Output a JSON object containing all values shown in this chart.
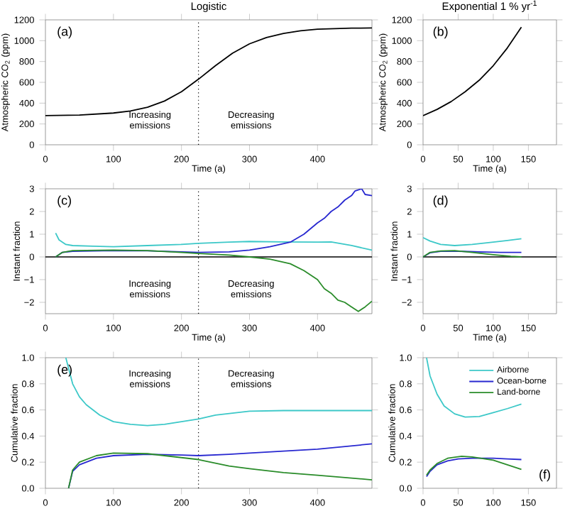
{
  "chart_data": [
    {
      "type": "line",
      "title": "Logistic",
      "xlabel": "Time (a)",
      "ylabel": "Atmospheric CO$_{2}$ (ppm)",
      "annotations": [
        "(a)",
        "Increasing emissions",
        "Decreasing emissions"
      ],
      "xlim": [
        0,
        480
      ],
      "xticks": [
        0,
        100,
        200,
        300,
        400
      ],
      "ylim": [
        0,
        1200
      ],
      "yticks": [
        0,
        200,
        400,
        600,
        800,
        1000,
        1200
      ],
      "ref_lines": [
        {
          "axis": "x",
          "value": 225,
          "color": "#000000",
          "line_style": "dotted"
        }
      ],
      "series": [
        {
          "color": "#000000",
          "x": [
            0,
            50,
            100,
            125,
            150,
            175,
            200,
            225,
            250,
            275,
            300,
            325,
            350,
            375,
            400,
            450,
            480
          ],
          "values": [
            280,
            285,
            305,
            325,
            360,
            420,
            510,
            630,
            760,
            880,
            970,
            1030,
            1070,
            1095,
            1110,
            1120,
            1122
          ]
        }
      ]
    },
    {
      "type": "line",
      "title": "Exponential 1 % yr$^{-1}$",
      "xlabel": "Time (a)",
      "ylabel": "Atmospheric CO$_{2}$ (ppm)",
      "annotations": [
        "(b)"
      ],
      "xlim": [
        0,
        190
      ],
      "xticks": [
        0,
        50,
        100,
        150
      ],
      "ylim": [
        0,
        1200
      ],
      "yticks": [
        0,
        200,
        400,
        600,
        800,
        1000,
        1200
      ],
      "series": [
        {
          "color": "#000000",
          "x": [
            0,
            20,
            40,
            60,
            80,
            100,
            120,
            140
          ],
          "values": [
            280,
            340,
            415,
            510,
            620,
            760,
            930,
            1130
          ]
        }
      ]
    },
    {
      "type": "line",
      "xlabel": "Time (a)",
      "ylabel": "Instant fraction",
      "annotations": [
        "(c)",
        "Increasing emissions",
        "Decreasing emissions"
      ],
      "xlim": [
        0,
        480
      ],
      "xticks": [
        0,
        100,
        200,
        300,
        400
      ],
      "ylim": [
        -2.5,
        3
      ],
      "yticks": [
        {
          "value": -2,
          "label": "−2"
        },
        {
          "value": -1,
          "label": "−1"
        },
        0,
        1,
        2,
        3
      ],
      "ref_lines": [
        {
          "axis": "x",
          "value": 225,
          "color": "#000000",
          "line_style": "dotted"
        },
        {
          "axis": "y",
          "value": 0,
          "color": "#000000",
          "line_style": "solid"
        }
      ],
      "series": [
        {
          "color": "#3cc8c8",
          "x": [
            15,
            20,
            30,
            40,
            70,
            100,
            150,
            200,
            225,
            270,
            300,
            350,
            400,
            420,
            450,
            480
          ],
          "values": [
            1.05,
            0.75,
            0.55,
            0.5,
            0.47,
            0.45,
            0.5,
            0.55,
            0.6,
            0.65,
            0.68,
            0.66,
            0.65,
            0.66,
            0.5,
            0.3
          ]
        },
        {
          "color": "#2828d0",
          "x": [
            15,
            25,
            40,
            100,
            150,
            200,
            225,
            270,
            300,
            330,
            360,
            380,
            400,
            410,
            420,
            430,
            440,
            450,
            455,
            465,
            470,
            480
          ],
          "values": [
            0,
            0.2,
            0.25,
            0.28,
            0.27,
            0.22,
            0.2,
            0.22,
            0.3,
            0.45,
            0.65,
            1.0,
            1.5,
            1.7,
            2.0,
            2.2,
            2.5,
            2.7,
            2.9,
            3.0,
            2.75,
            2.7
          ]
        },
        {
          "color": "#2a8c2a",
          "x": [
            15,
            25,
            40,
            100,
            150,
            200,
            225,
            270,
            300,
            330,
            360,
            380,
            400,
            410,
            420,
            430,
            440,
            450,
            460,
            470,
            480
          ],
          "values": [
            0,
            0.2,
            0.28,
            0.3,
            0.28,
            0.2,
            0.15,
            0.08,
            0.0,
            -0.1,
            -0.3,
            -0.6,
            -1.0,
            -1.4,
            -1.6,
            -1.9,
            -2.0,
            -2.2,
            -2.4,
            -2.2,
            -1.95
          ]
        }
      ]
    },
    {
      "type": "line",
      "xlabel": "Time (a)",
      "ylabel": "Instant fraction",
      "annotations": [
        "(d)"
      ],
      "xlim": [
        0,
        190
      ],
      "xticks": [
        0,
        50,
        100,
        150
      ],
      "ylim": [
        -2.5,
        3
      ],
      "yticks": [
        {
          "value": -2,
          "label": "−2"
        },
        {
          "value": -1,
          "label": "−1"
        },
        0,
        1,
        2,
        3
      ],
      "ref_lines": [
        {
          "axis": "y",
          "value": 0,
          "color": "#000000",
          "line_style": "solid"
        }
      ],
      "series": [
        {
          "color": "#3cc8c8",
          "x": [
            0,
            10,
            25,
            45,
            70,
            100,
            120,
            140
          ],
          "values": [
            0.85,
            0.7,
            0.55,
            0.5,
            0.55,
            0.65,
            0.72,
            0.8
          ]
        },
        {
          "color": "#2828d0",
          "x": [
            0,
            10,
            25,
            50,
            80,
            110,
            140
          ],
          "values": [
            0,
            0.18,
            0.25,
            0.25,
            0.22,
            0.2,
            0.2
          ]
        },
        {
          "color": "#2a8c2a",
          "x": [
            0,
            10,
            25,
            45,
            70,
            100,
            125,
            140
          ],
          "values": [
            0,
            0.2,
            0.26,
            0.28,
            0.2,
            0.1,
            0.03,
            0
          ]
        }
      ]
    },
    {
      "type": "line",
      "ylabel": "Cumulative fraction",
      "annotations": [
        "(e)",
        "Increasing emissions",
        "Decreasing emissions"
      ],
      "xlim": [
        0,
        480
      ],
      "xticks": [
        0,
        100,
        200,
        300,
        400
      ],
      "ylim": [
        0,
        1
      ],
      "yticks": [
        {
          "value": 0,
          "label": "0.0"
        },
        0.2,
        0.4,
        0.6,
        0.8,
        {
          "value": 1,
          "label": "1.0"
        }
      ],
      "ref_lines": [
        {
          "axis": "x",
          "value": 225,
          "color": "#000000",
          "line_style": "dotted"
        }
      ],
      "series": [
        {
          "color": "#3cc8c8",
          "x": [
            30,
            40,
            50,
            60,
            80,
            100,
            125,
            150,
            175,
            200,
            225,
            250,
            300,
            350,
            400,
            480
          ],
          "values": [
            1.0,
            0.8,
            0.7,
            0.64,
            0.56,
            0.51,
            0.49,
            0.48,
            0.49,
            0.51,
            0.53,
            0.56,
            0.59,
            0.595,
            0.595,
            0.595
          ]
        },
        {
          "color": "#2828d0",
          "x": [
            34,
            40,
            50,
            75,
            100,
            150,
            200,
            225,
            270,
            300,
            400,
            480
          ],
          "values": [
            0,
            0.13,
            0.18,
            0.23,
            0.25,
            0.26,
            0.255,
            0.25,
            0.26,
            0.27,
            0.3,
            0.34
          ]
        },
        {
          "color": "#2a8c2a",
          "x": [
            34,
            40,
            50,
            75,
            100,
            150,
            175,
            200,
            225,
            270,
            300,
            350,
            400,
            480
          ],
          "values": [
            0,
            0.14,
            0.2,
            0.25,
            0.27,
            0.265,
            0.25,
            0.235,
            0.22,
            0.17,
            0.15,
            0.12,
            0.1,
            0.065
          ]
        }
      ]
    },
    {
      "type": "line",
      "ylabel": "Cumulative fraction",
      "legend": "top right",
      "annotations": [
        "(f)"
      ],
      "xlim": [
        0,
        190
      ],
      "xticks": [
        0,
        50,
        100,
        150
      ],
      "ylim": [
        0,
        1
      ],
      "yticks": [
        {
          "value": 0,
          "label": "0.0"
        },
        0.2,
        0.4,
        0.6,
        0.8,
        {
          "value": 1,
          "label": "1.0"
        }
      ],
      "series": [
        {
          "name": "Airborne",
          "color": "#3cc8c8",
          "x": [
            5,
            10,
            20,
            30,
            45,
            60,
            80,
            100,
            120,
            140
          ],
          "values": [
            1.0,
            0.86,
            0.72,
            0.63,
            0.57,
            0.545,
            0.55,
            0.58,
            0.61,
            0.645
          ]
        },
        {
          "name": "Ocean-borne",
          "color": "#2828d0",
          "x": [
            5,
            10,
            20,
            35,
            50,
            70,
            100,
            120,
            140
          ],
          "values": [
            0.09,
            0.13,
            0.18,
            0.21,
            0.225,
            0.23,
            0.23,
            0.225,
            0.22
          ]
        },
        {
          "name": "Land-borne",
          "color": "#2a8c2a",
          "x": [
            5,
            10,
            20,
            35,
            55,
            70,
            100,
            120,
            140
          ],
          "values": [
            0.1,
            0.14,
            0.19,
            0.23,
            0.245,
            0.24,
            0.215,
            0.18,
            0.145
          ]
        }
      ]
    }
  ]
}
